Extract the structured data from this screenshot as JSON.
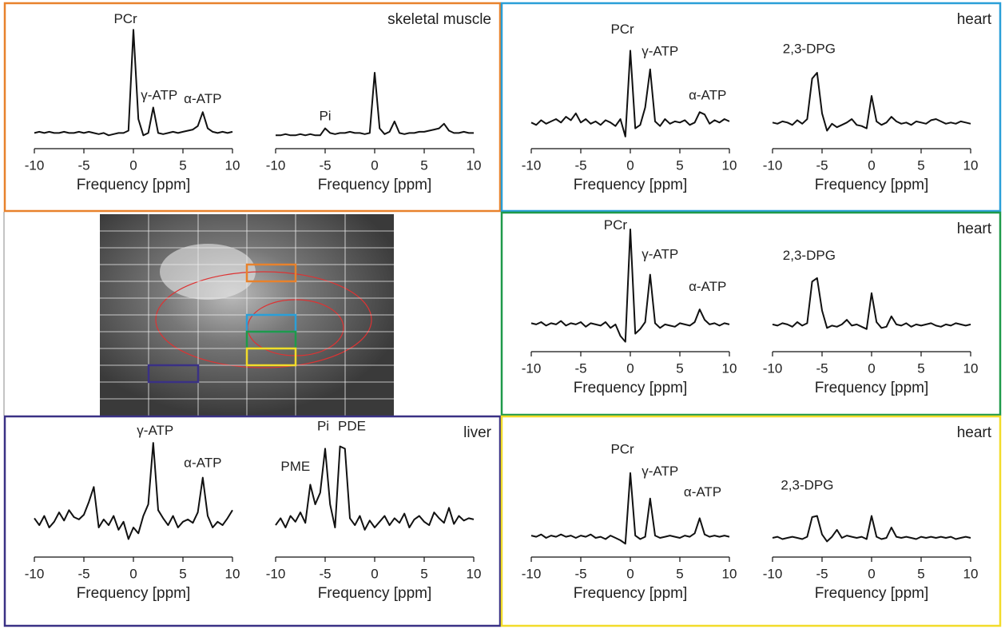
{
  "chart_data": [
    {
      "type": "line",
      "frame_color": "#e8822c",
      "x": [
        -10,
        -9.5,
        -9,
        -8.5,
        -8,
        -7.5,
        -7,
        -6.5,
        -6,
        -5.5,
        -5,
        -4.5,
        -4,
        -3.5,
        -3,
        -2.5,
        -2,
        -1.5,
        -1,
        -0.5,
        0,
        0.5,
        1,
        1.5,
        2,
        2.5,
        3,
        3.5,
        4,
        4.5,
        5,
        5.5,
        6,
        6.5,
        7,
        7.5,
        8,
        8.5,
        9,
        9.5,
        10
      ],
      "values": [
        8,
        9,
        8,
        9,
        8,
        8,
        9,
        8,
        8,
        9,
        8,
        9,
        8,
        7,
        8,
        6,
        7,
        8,
        8,
        10,
        97,
        20,
        6,
        8,
        30,
        8,
        7,
        8,
        9,
        8,
        9,
        10,
        11,
        14,
        26,
        12,
        9,
        8,
        9,
        8,
        9
      ],
      "ylim": [
        0,
        100
      ],
      "xlim": [
        -10,
        10
      ],
      "xticks": [
        -10,
        -5,
        0,
        5,
        10
      ],
      "xlabel": "Frequency [ppm]",
      "annotations": [
        {
          "text": "PCr",
          "x": -0.8,
          "y": 106
        },
        {
          "text": "γ-ATP",
          "x": 2.6,
          "y": 40
        },
        {
          "text": "α-ATP",
          "x": 7,
          "y": 37
        }
      ]
    },
    {
      "type": "line",
      "panel_label": "skeletal muscle",
      "x": [
        -10,
        -9.5,
        -9,
        -8.5,
        -8,
        -7.5,
        -7,
        -6.5,
        -6,
        -5.5,
        -5,
        -4.5,
        -4,
        -3.5,
        -3,
        -2.5,
        -2,
        -1.5,
        -1,
        -0.5,
        0,
        0.5,
        1,
        1.5,
        2,
        2.5,
        3,
        3.5,
        4,
        4.5,
        5,
        5.5,
        6,
        6.5,
        7,
        7.5,
        8,
        8.5,
        9,
        9.5,
        10
      ],
      "values": [
        6,
        6,
        7,
        6,
        6,
        7,
        6,
        7,
        6,
        6,
        12,
        8,
        7,
        8,
        8,
        9,
        8,
        8,
        7,
        8,
        60,
        12,
        7,
        9,
        18,
        8,
        7,
        8,
        8,
        9,
        9,
        10,
        11,
        12,
        16,
        10,
        8,
        8,
        9,
        8,
        8
      ],
      "ylim": [
        0,
        100
      ],
      "xlim": [
        -10,
        10
      ],
      "xticks": [
        -10,
        -5,
        0,
        5,
        10
      ],
      "xlabel": "Frequency [ppm]",
      "annotations": [
        {
          "text": "Pi",
          "x": -5,
          "y": 22
        }
      ]
    },
    {
      "type": "line",
      "frame_color": "#2a9fd8",
      "x": [
        -10,
        -9.5,
        -9,
        -8.5,
        -8,
        -7.5,
        -7,
        -6.5,
        -6,
        -5.5,
        -5,
        -4.5,
        -4,
        -3.5,
        -3,
        -2.5,
        -2,
        -1.5,
        -1,
        -0.5,
        0,
        0.5,
        1,
        1.5,
        2,
        2.5,
        3,
        3.5,
        4,
        4.5,
        5,
        5.5,
        6,
        6.5,
        7,
        7.5,
        8,
        8.5,
        9,
        9.5,
        10
      ],
      "values": [
        17,
        15,
        19,
        16,
        18,
        20,
        17,
        22,
        19,
        25,
        17,
        20,
        16,
        18,
        15,
        19,
        17,
        14,
        20,
        5,
        79,
        12,
        15,
        30,
        63,
        18,
        14,
        20,
        16,
        18,
        17,
        19,
        15,
        17,
        26,
        24,
        16,
        19,
        17,
        20,
        18
      ],
      "ylim": [
        0,
        100
      ],
      "xlim": [
        -10,
        10
      ],
      "xticks": [
        -10,
        -5,
        0,
        5,
        10
      ],
      "xlabel": "Frequency [ppm]",
      "annotations": [
        {
          "text": "PCr",
          "x": -0.8,
          "y": 97
        },
        {
          "text": "γ-ATP",
          "x": 3,
          "y": 78
        },
        {
          "text": "α-ATP",
          "x": 7.8,
          "y": 40
        }
      ]
    },
    {
      "type": "line",
      "panel_label": "heart",
      "x": [
        -10,
        -9.5,
        -9,
        -8.5,
        -8,
        -7.5,
        -7,
        -6.5,
        -6,
        -5.5,
        -5,
        -4.5,
        -4,
        -3.5,
        -3,
        -2.5,
        -2,
        -1.5,
        -1,
        -0.5,
        0,
        0.5,
        1,
        1.5,
        2,
        2.5,
        3,
        3.5,
        4,
        4.5,
        5,
        5.5,
        6,
        6.5,
        7,
        7.5,
        8,
        8.5,
        9,
        9.5,
        10
      ],
      "values": [
        17,
        16,
        18,
        17,
        15,
        19,
        16,
        20,
        55,
        60,
        25,
        10,
        16,
        13,
        15,
        17,
        20,
        15,
        14,
        12,
        40,
        18,
        15,
        17,
        22,
        18,
        16,
        17,
        15,
        18,
        17,
        16,
        19,
        20,
        18,
        16,
        17,
        16,
        18,
        17,
        16
      ],
      "ylim": [
        0,
        100
      ],
      "xlim": [
        -10,
        10
      ],
      "xticks": [
        -10,
        -5,
        0,
        5,
        10
      ],
      "xlabel": "Frequency [ppm]",
      "annotations": [
        {
          "text": "2,3-DPG",
          "x": -6.3,
          "y": 80
        }
      ]
    },
    {
      "type": "line",
      "frame_color": "#1f9a4a",
      "x": [
        -10,
        -9.5,
        -9,
        -8.5,
        -8,
        -7.5,
        -7,
        -6.5,
        -6,
        -5.5,
        -5,
        -4.5,
        -4,
        -3.5,
        -3,
        -2.5,
        -2,
        -1.5,
        -1,
        -0.5,
        0,
        0.5,
        1,
        1.5,
        2,
        2.5,
        3,
        3.5,
        4,
        4.5,
        5,
        5.5,
        6,
        6.5,
        7,
        7.5,
        8,
        8.5,
        9,
        9.5,
        10
      ],
      "values": [
        19,
        18,
        20,
        17,
        19,
        18,
        21,
        17,
        19,
        18,
        20,
        16,
        19,
        18,
        17,
        20,
        15,
        18,
        8,
        3,
        100,
        10,
        14,
        20,
        61,
        19,
        15,
        18,
        17,
        16,
        19,
        18,
        17,
        20,
        31,
        22,
        18,
        19,
        17,
        19,
        18
      ],
      "ylim": [
        0,
        100
      ],
      "xlim": [
        -10,
        10
      ],
      "xticks": [
        -10,
        -5,
        0,
        5,
        10
      ],
      "xlabel": "Frequency [ppm]",
      "annotations": [
        {
          "text": "PCr",
          "x": -1.5,
          "y": 103
        },
        {
          "text": "γ-ATP",
          "x": 3,
          "y": 78
        },
        {
          "text": "α-ATP",
          "x": 7.8,
          "y": 50
        }
      ]
    },
    {
      "type": "line",
      "panel_label": "heart",
      "x": [
        -10,
        -9.5,
        -9,
        -8.5,
        -8,
        -7.5,
        -7,
        -6.5,
        -6,
        -5.5,
        -5,
        -4.5,
        -4,
        -3.5,
        -3,
        -2.5,
        -2,
        -1.5,
        -1,
        -0.5,
        0,
        0.5,
        1,
        1.5,
        2,
        2.5,
        3,
        3.5,
        4,
        4.5,
        5,
        5.5,
        6,
        6.5,
        7,
        7.5,
        8,
        8.5,
        9,
        9.5,
        10
      ],
      "values": [
        18,
        17,
        19,
        18,
        16,
        20,
        17,
        19,
        55,
        58,
        30,
        15,
        17,
        16,
        18,
        22,
        17,
        18,
        16,
        14,
        45,
        20,
        15,
        16,
        25,
        18,
        17,
        19,
        16,
        18,
        17,
        18,
        19,
        17,
        16,
        18,
        17,
        19,
        18,
        17,
        18
      ],
      "ylim": [
        0,
        100
      ],
      "xlim": [
        -10,
        10
      ],
      "xticks": [
        -10,
        -5,
        0,
        5,
        10
      ],
      "xlabel": "Frequency [ppm]",
      "annotations": [
        {
          "text": "2,3-DPG",
          "x": -6.3,
          "y": 77
        }
      ]
    },
    {
      "type": "line",
      "frame_color": "#3a3185",
      "x": [
        -10,
        -9.5,
        -9,
        -8.5,
        -8,
        -7.5,
        -7,
        -6.5,
        -6,
        -5.5,
        -5,
        -4.5,
        -4,
        -3.5,
        -3,
        -2.5,
        -2,
        -1.5,
        -1,
        -0.5,
        0,
        0.5,
        1,
        1.5,
        2,
        2.5,
        3,
        3.5,
        4,
        4.5,
        5,
        5.5,
        6,
        6.5,
        7,
        7.5,
        8,
        8.5,
        9,
        9.5,
        10
      ],
      "values": [
        28,
        22,
        30,
        20,
        25,
        33,
        26,
        35,
        29,
        27,
        31,
        42,
        55,
        20,
        27,
        22,
        30,
        18,
        25,
        10,
        20,
        15,
        30,
        40,
        93,
        35,
        28,
        22,
        30,
        20,
        25,
        27,
        24,
        33,
        63,
        30,
        20,
        25,
        22,
        28,
        35
      ],
      "ylim": [
        0,
        100
      ],
      "xlim": [
        -10,
        10
      ],
      "xticks": [
        -10,
        -5,
        0,
        5,
        10
      ],
      "xlabel": "Frequency [ppm]",
      "annotations": [
        {
          "text": "γ-ATP",
          "x": 2.2,
          "y": 103
        },
        {
          "text": "α-ATP",
          "x": 7,
          "y": 75
        }
      ]
    },
    {
      "type": "line",
      "panel_label": "liver",
      "x": [
        -10,
        -9.5,
        -9,
        -8.5,
        -8,
        -7.5,
        -7,
        -6.5,
        -6,
        -5.5,
        -5,
        -4.5,
        -4,
        -3.5,
        -3,
        -2.5,
        -2,
        -1.5,
        -1,
        -0.5,
        0,
        0.5,
        1,
        1.5,
        2,
        2.5,
        3,
        3.5,
        4,
        4.5,
        5,
        5.5,
        6,
        6.5,
        7,
        7.5,
        8,
        8.5,
        9,
        9.5,
        10
      ],
      "values": [
        22,
        28,
        20,
        30,
        25,
        33,
        24,
        57,
        40,
        50,
        88,
        40,
        20,
        90,
        88,
        28,
        22,
        30,
        18,
        26,
        20,
        25,
        30,
        22,
        28,
        24,
        32,
        20,
        27,
        30,
        25,
        22,
        33,
        28,
        24,
        37,
        23,
        30,
        26,
        28,
        27
      ],
      "ylim": [
        0,
        100
      ],
      "xlim": [
        -10,
        10
      ],
      "xticks": [
        -10,
        -5,
        0,
        5,
        10
      ],
      "xlabel": "Frequency [ppm]",
      "annotations": [
        {
          "text": "PME",
          "x": -8,
          "y": 72
        },
        {
          "text": "Pi",
          "x": -5.2,
          "y": 107
        },
        {
          "text": "PDE",
          "x": -2.3,
          "y": 107
        }
      ]
    },
    {
      "type": "line",
      "frame_color": "#f2dc2a",
      "x": [
        -10,
        -9.5,
        -9,
        -8.5,
        -8,
        -7.5,
        -7,
        -6.5,
        -6,
        -5.5,
        -5,
        -4.5,
        -4,
        -3.5,
        -3,
        -2.5,
        -2,
        -1.5,
        -1,
        -0.5,
        0,
        0.5,
        1,
        1.5,
        2,
        2.5,
        3,
        3.5,
        4,
        4.5,
        5,
        5.5,
        6,
        6.5,
        7,
        7.5,
        8,
        8.5,
        9,
        9.5,
        10
      ],
      "values": [
        13,
        12,
        14,
        11,
        13,
        12,
        14,
        12,
        13,
        11,
        13,
        12,
        14,
        11,
        12,
        10,
        13,
        11,
        9,
        6,
        67,
        13,
        10,
        12,
        45,
        13,
        11,
        12,
        13,
        12,
        11,
        13,
        12,
        15,
        28,
        14,
        12,
        13,
        12,
        13,
        12
      ],
      "ylim": [
        0,
        100
      ],
      "xlim": [
        -10,
        10
      ],
      "xticks": [
        -10,
        -5,
        0,
        5,
        10
      ],
      "xlabel": "Frequency [ppm]",
      "annotations": [
        {
          "text": "PCr",
          "x": -0.8,
          "y": 87
        },
        {
          "text": "γ-ATP",
          "x": 3,
          "y": 68
        },
        {
          "text": "α-ATP",
          "x": 7.3,
          "y": 50
        }
      ]
    },
    {
      "type": "line",
      "panel_label": "heart",
      "x": [
        -10,
        -9.5,
        -9,
        -8.5,
        -8,
        -7.5,
        -7,
        -6.5,
        -6,
        -5.5,
        -5,
        -4.5,
        -4,
        -3.5,
        -3,
        -2.5,
        -2,
        -1.5,
        -1,
        -0.5,
        0,
        0.5,
        1,
        1.5,
        2,
        2.5,
        3,
        3.5,
        4,
        4.5,
        5,
        5.5,
        6,
        6.5,
        7,
        7.5,
        8,
        8.5,
        9,
        9.5,
        10
      ],
      "values": [
        11,
        12,
        10,
        11,
        12,
        11,
        10,
        12,
        29,
        30,
        14,
        8,
        12,
        18,
        11,
        13,
        12,
        11,
        12,
        10,
        30,
        12,
        10,
        11,
        20,
        12,
        11,
        12,
        11,
        10,
        12,
        11,
        12,
        11,
        12,
        11,
        12,
        10,
        11,
        12,
        11
      ],
      "ylim": [
        0,
        100
      ],
      "xlim": [
        -10,
        10
      ],
      "xticks": [
        -10,
        -5,
        0,
        5,
        10
      ],
      "xlabel": "Frequency [ppm]",
      "annotations": [
        {
          "text": "2,3-DPG",
          "x": -6.5,
          "y": 56
        }
      ]
    }
  ]
}
